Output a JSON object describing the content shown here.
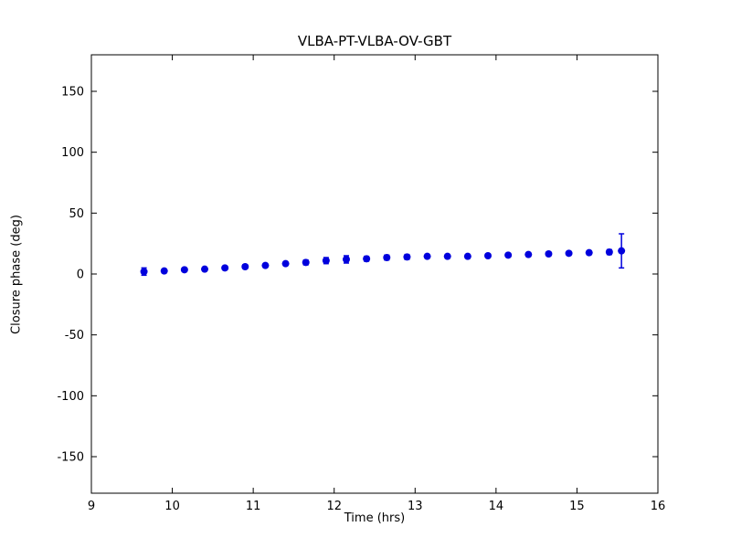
{
  "chart_data": {
    "type": "scatter",
    "title": "VLBA-PT-VLBA-OV-GBT",
    "xlabel": "Time (hrs)",
    "ylabel": "Closure phase (deg)",
    "xlim": [
      9,
      16
    ],
    "ylim": [
      -180,
      180
    ],
    "xticks": [
      9,
      10,
      11,
      12,
      13,
      14,
      15,
      16
    ],
    "yticks": [
      -150,
      -100,
      -50,
      0,
      50,
      100,
      150
    ],
    "grid": false,
    "legend": "none",
    "marker_color": "#0000dd",
    "axis_color": "#000000",
    "x": [
      9.65,
      9.9,
      10.15,
      10.4,
      10.65,
      10.9,
      11.15,
      11.4,
      11.65,
      11.9,
      12.15,
      12.4,
      12.65,
      12.9,
      13.15,
      13.4,
      13.65,
      13.9,
      14.15,
      14.4,
      14.65,
      14.9,
      15.15,
      15.4,
      15.55
    ],
    "y": [
      2,
      2.5,
      3.5,
      4,
      5,
      6,
      7,
      8.5,
      9.5,
      11,
      12,
      12.5,
      13.5,
      14,
      14.5,
      14.5,
      14.5,
      15,
      15.5,
      16,
      16.5,
      17,
      17.5,
      18,
      19
    ],
    "yerr": [
      3,
      1.5,
      1.5,
      1.5,
      1.5,
      1.5,
      1.5,
      1.5,
      2,
      2.5,
      3,
      2,
      2,
      2,
      1.5,
      1.5,
      1.5,
      1.5,
      1.5,
      1.5,
      1.5,
      1.5,
      1.5,
      2,
      14
    ]
  }
}
